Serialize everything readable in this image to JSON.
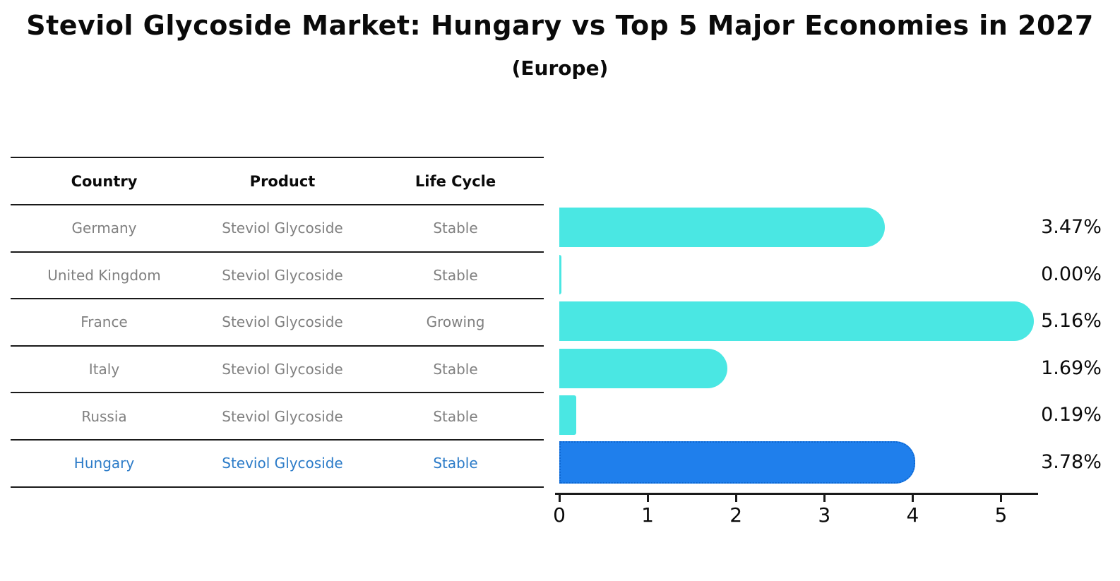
{
  "title": "Steviol Glycoside Market: Hungary vs Top 5 Major Economies in 2027",
  "subtitle": "(Europe)",
  "table": {
    "headers": [
      "Country",
      "Product",
      "Life Cycle"
    ],
    "rows": [
      {
        "country": "Germany",
        "product": "Steviol Glycoside",
        "life_cycle": "Stable",
        "highlight": false
      },
      {
        "country": "United Kingdom",
        "product": "Steviol Glycoside",
        "life_cycle": "Stable",
        "highlight": false
      },
      {
        "country": "France",
        "product": "Steviol Glycoside",
        "life_cycle": "Growing",
        "highlight": false
      },
      {
        "country": "Italy",
        "product": "Steviol Glycoside",
        "life_cycle": "Stable",
        "highlight": false
      },
      {
        "country": "Russia",
        "product": "Steviol Glycoside",
        "life_cycle": "Stable",
        "highlight": false
      },
      {
        "country": "Hungary",
        "product": "Steviol Glycoside",
        "life_cycle": "Stable",
        "highlight": true
      }
    ]
  },
  "chart_data": {
    "type": "bar",
    "orientation": "horizontal",
    "title": "Steviol Glycoside Market: Hungary vs Top 5 Major Economies in 2027 (Europe)",
    "categories": [
      "Germany",
      "United Kingdom",
      "France",
      "Italy",
      "Russia",
      "Hungary"
    ],
    "values": [
      3.47,
      0.0,
      5.16,
      1.69,
      0.19,
      3.78
    ],
    "value_labels": [
      "3.47%",
      "0.00%",
      "5.16%",
      "1.69%",
      "0.19%",
      "3.78%"
    ],
    "x_ticks": [
      "0",
      "1",
      "2",
      "3",
      "4",
      "5"
    ],
    "xlim": [
      0,
      5.3
    ],
    "grid": false,
    "legend": false,
    "bar_color": "#4AE7E3",
    "highlight_index": 5,
    "highlight_color": "#1F7FEC",
    "highlight_border_color": "#0D66D0"
  },
  "colors": {
    "background": "#FFFFFF",
    "title_text": "#0A0A0A",
    "table_row_text": "#808080",
    "table_header_text": "#0A0A0A",
    "highlight_row_text": "#2B7BC8",
    "axis": "#1A1A1A",
    "value_label_text": "#0A0A0A"
  }
}
